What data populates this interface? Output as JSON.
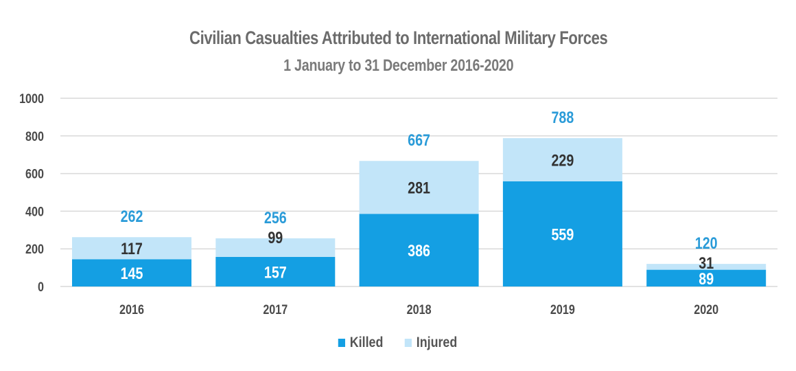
{
  "chart_data": {
    "type": "bar",
    "stacked": true,
    "title": "Civilian Casualties Attributed to International Military Forces",
    "subtitle": "1 January to 31 December 2016-2020",
    "xlabel": "",
    "ylabel": "",
    "categories": [
      "2016",
      "2017",
      "2018",
      "2019",
      "2020"
    ],
    "series": [
      {
        "name": "Killed",
        "color": "#149FE3",
        "label_color": "#ffffff",
        "values": [
          145,
          157,
          386,
          559,
          89
        ]
      },
      {
        "name": "Injured",
        "color": "#C2E5F9",
        "label_color": "#333333",
        "values": [
          117,
          99,
          281,
          229,
          31
        ]
      }
    ],
    "totals": [
      262,
      256,
      667,
      788,
      120
    ],
    "total_label_color": "#2A9BD8",
    "ylim": [
      0,
      1000
    ],
    "yticks": [
      0,
      200,
      400,
      600,
      800,
      1000
    ],
    "grid": true,
    "legend": {
      "placement": "bottom",
      "entries": [
        "Killed",
        "Injured"
      ]
    }
  }
}
